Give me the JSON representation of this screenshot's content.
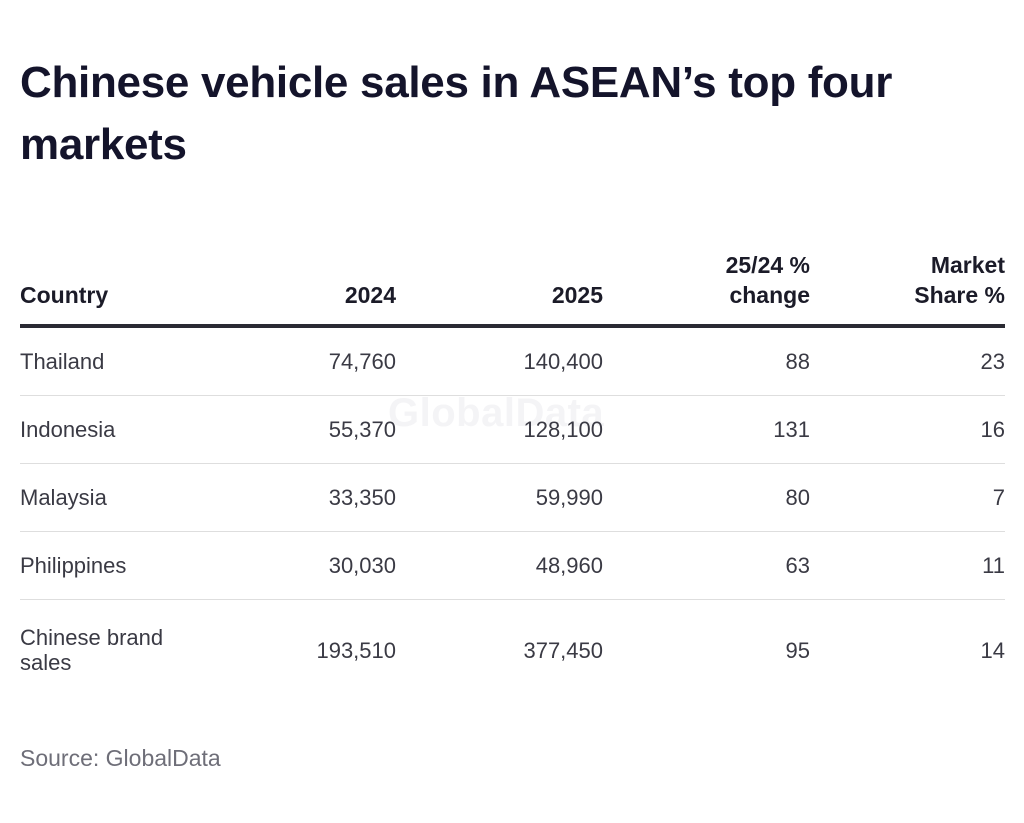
{
  "title": "Chinese vehicle sales in ASEAN’s top four markets",
  "watermark": "GlobalData",
  "source": "Source: GlobalData",
  "chart_data": {
    "type": "table",
    "title": "Chinese vehicle sales in ASEAN’s top four markets",
    "columns": [
      "Country",
      "2024",
      "2025",
      "25/24 % change",
      "Market Share %"
    ],
    "rows": [
      {
        "country": "Thailand",
        "y2024": "74,760",
        "y2025": "140,400",
        "change": "88",
        "share": "23"
      },
      {
        "country": "Indonesia",
        "y2024": "55,370",
        "y2025": "128,100",
        "change": "131",
        "share": "16"
      },
      {
        "country": "Malaysia",
        "y2024": "33,350",
        "y2025": "59,990",
        "change": "80",
        "share": "7"
      },
      {
        "country": "Philippines",
        "y2024": "30,030",
        "y2025": "48,960",
        "change": "63",
        "share": "11"
      },
      {
        "country": "Chinese brand sales",
        "y2024": "193,510",
        "y2025": "377,450",
        "change": "95",
        "share": "14"
      }
    ],
    "source": "Source: GlobalData"
  }
}
